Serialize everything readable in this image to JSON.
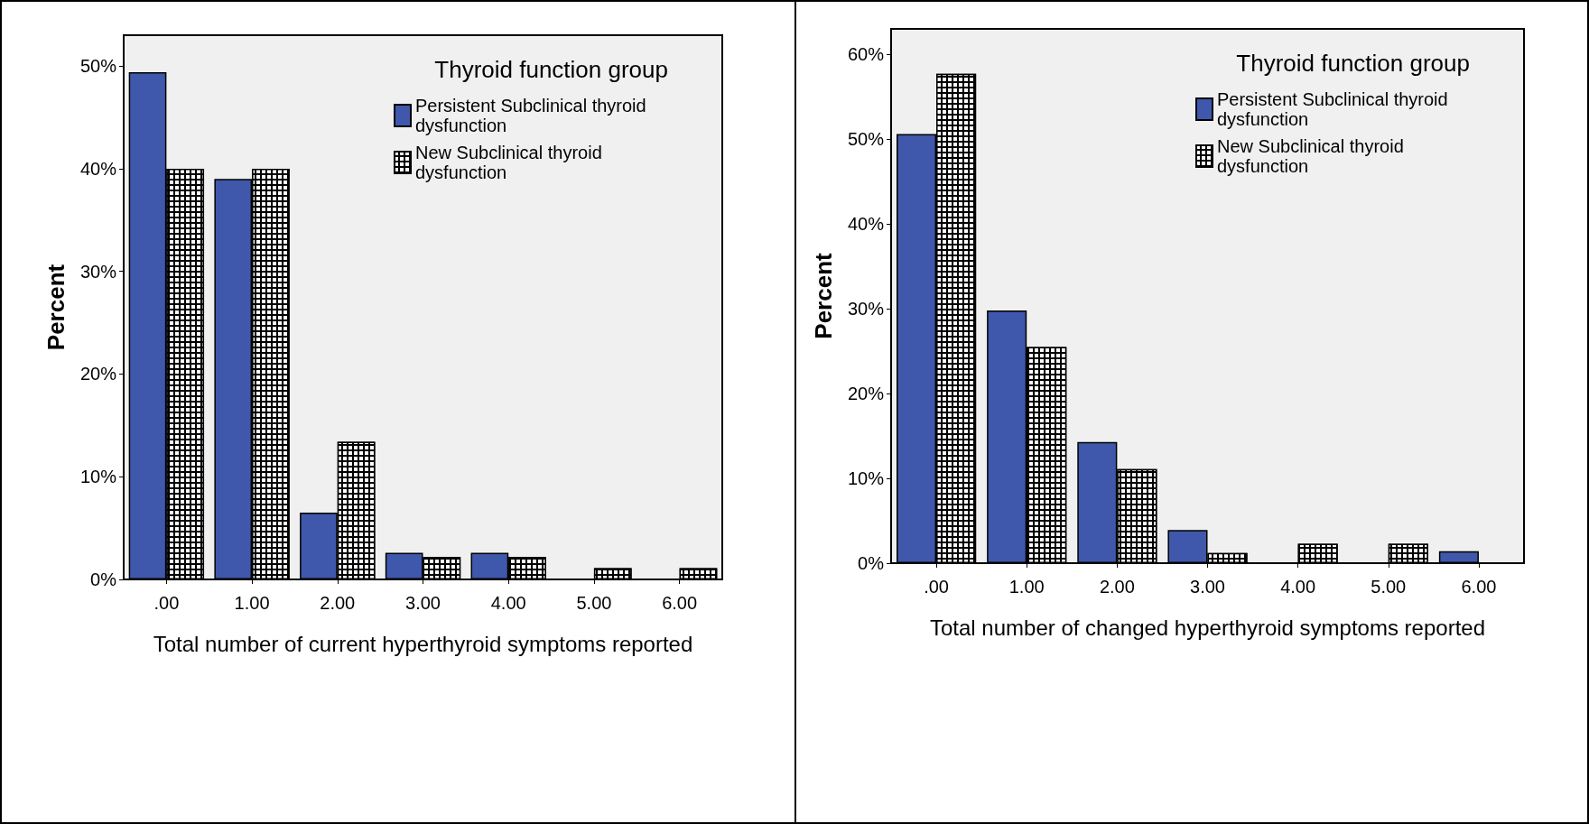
{
  "chart_data": [
    {
      "type": "bar",
      "categories": [
        ".00",
        "1.00",
        "2.00",
        "3.00",
        "4.00",
        "5.00",
        "6.00"
      ],
      "xlabel": "Total number of current hyperthyroid symptoms reported",
      "ylabel": "Percent",
      "legend_title": "Thyroid function group",
      "legend": "top right",
      "grid": false,
      "series": [
        {
          "name": "Persistent Subclinical thyroid dysfunction",
          "color": "#3f58ab",
          "values": [
            49.4,
            39,
            6.5,
            2.6,
            2.6,
            0,
            0
          ]
        },
        {
          "name": "New Subclinical thyroid dysfunction",
          "color": "#000000",
          "values": [
            40,
            40,
            13.4,
            2.2,
            2.2,
            1.1,
            1.1
          ]
        }
      ],
      "ylim": [
        0,
        53
      ],
      "yticks": [
        {
          "value": 0,
          "label": "0%"
        },
        {
          "value": 10,
          "label": "10%"
        },
        {
          "value": 20,
          "label": "20%"
        },
        {
          "value": 30,
          "label": "30%"
        },
        {
          "value": 40,
          "label": "40%"
        },
        {
          "value": 50,
          "label": "50%"
        }
      ]
    },
    {
      "type": "bar",
      "categories": [
        ".00",
        "1.00",
        "2.00",
        "3.00",
        "4.00",
        "5.00",
        "6.00"
      ],
      "xlabel": "Total number of changed hyperthyroid symptoms reported",
      "ylabel": "Percent",
      "legend_title": "Thyroid function group",
      "legend": "top right",
      "grid": false,
      "series": [
        {
          "name": "Persistent Subclinical thyroid dysfunction",
          "color": "#3f58ab",
          "values": [
            50.6,
            29.8,
            14.3,
            3.9,
            0,
            0,
            1.4
          ]
        },
        {
          "name": "New Subclinical thyroid dysfunction",
          "color": "#000000",
          "values": [
            57.7,
            25.5,
            11.1,
            1.2,
            2.3,
            2.3,
            0
          ]
        }
      ],
      "ylim": [
        0,
        63
      ],
      "yticks": [
        {
          "value": 0,
          "label": "0%"
        },
        {
          "value": 10,
          "label": "10%"
        },
        {
          "value": 20,
          "label": "20%"
        },
        {
          "value": 30,
          "label": "30%"
        },
        {
          "value": 40,
          "label": "40%"
        },
        {
          "value": 50,
          "label": "50%"
        },
        {
          "value": 60,
          "label": "60%"
        }
      ]
    }
  ]
}
